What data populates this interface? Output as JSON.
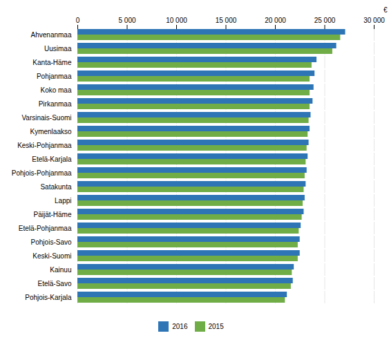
{
  "chart_data": {
    "type": "bar",
    "orientation": "horizontal",
    "categories": [
      "Ahvenanmaa",
      "Uusimaa",
      "Kanta-Häme",
      "Pohjanmaa",
      "Koko maa",
      "Pirkanmaa",
      "Varsinais-Suomi",
      "Kymenlaakso",
      "Keski-Pohjanmaa",
      "Etelä-Karjala",
      "Pohjois-Pohjanmaa",
      "Satakunta",
      "Lappi",
      "Päijät-Häme",
      "Etelä-Pohjanmaa",
      "Pohjois-Savo",
      "Keski-Suomi",
      "Kainuu",
      "Etelä-Savo",
      "Pohjois-Karjala"
    ],
    "series": [
      {
        "name": "2016",
        "color": "#2e75b6",
        "values": [
          27100,
          26200,
          24200,
          24000,
          23900,
          23800,
          23600,
          23500,
          23400,
          23300,
          23200,
          23100,
          23000,
          22900,
          22600,
          22500,
          22500,
          21900,
          21800,
          21200
        ]
      },
      {
        "name": "2015",
        "color": "#70ad47",
        "values": [
          26600,
          25800,
          23700,
          23500,
          23500,
          23500,
          23400,
          23300,
          23200,
          23100,
          23000,
          22900,
          22800,
          22700,
          22400,
          22300,
          22300,
          21700,
          21600,
          21000
        ]
      }
    ],
    "xlabel": "€",
    "xlim": [
      0,
      30000
    ],
    "xticks": [
      0,
      {
        "value": 5000,
        "label": "5 000"
      },
      {
        "value": 10000,
        "label": "10 000"
      },
      {
        "value": 15000,
        "label": "15 000"
      },
      {
        "value": 20000,
        "label": "20 000"
      },
      {
        "value": 25000,
        "label": "25 000"
      },
      {
        "value": 30000,
        "label": "30 000"
      }
    ],
    "grid": true,
    "legend": "bottom"
  }
}
